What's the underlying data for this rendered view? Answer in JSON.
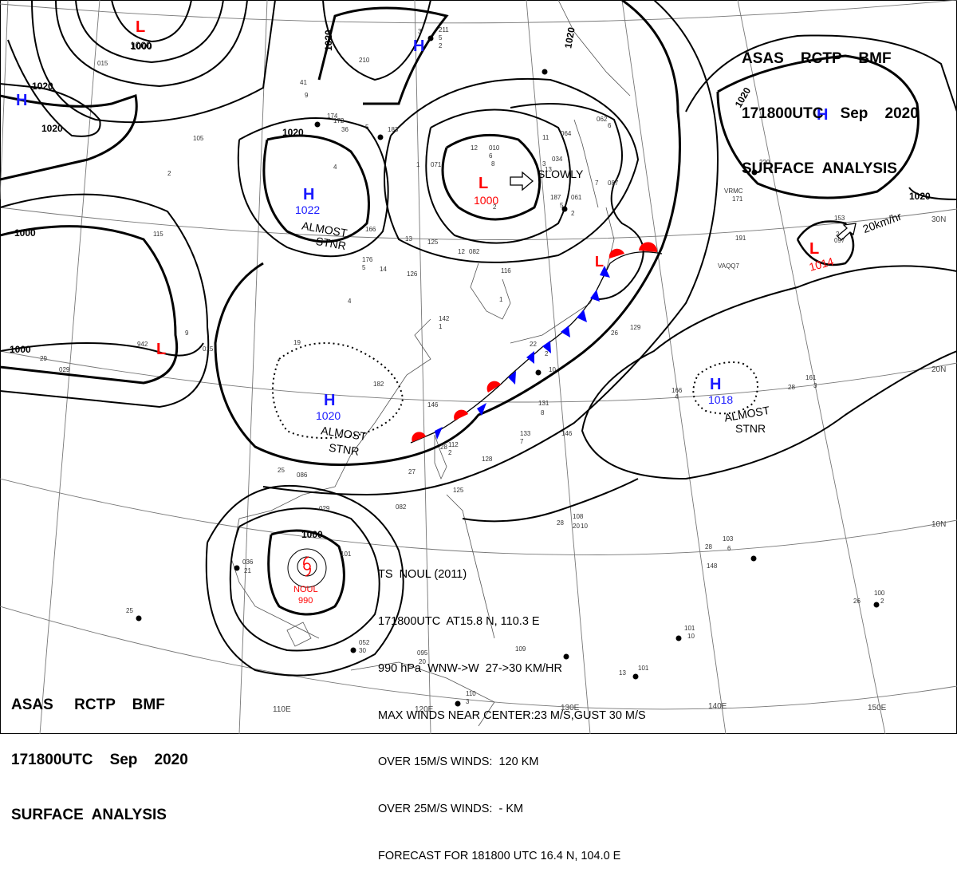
{
  "header_top_right": {
    "line1": "ASAS    RCTP    BMF",
    "line2": "171800UTC    Sep    2020",
    "line3": "SURFACE  ANALYSIS"
  },
  "header_bottom_left": {
    "line1": "ASAS     RCTP    BMF",
    "line2": "171800UTC    Sep    2020",
    "line3": "SURFACE  ANALYSIS"
  },
  "colors": {
    "high": "#1a1aff",
    "low": "#ff0000",
    "cold_front": "#0000ff",
    "warm_front": "#ff0000",
    "isobar": "#000000",
    "grid": "#777777"
  },
  "grid_labels": {
    "lon": [
      "110E",
      "120E",
      "130E",
      "140E",
      "150E"
    ],
    "lat": [
      "30N",
      "20N",
      "10N"
    ]
  },
  "pressure_centers": [
    {
      "type": "L",
      "value": "1000",
      "value_color": "black"
    },
    {
      "type": "L",
      "value": "1000",
      "value_color": "red",
      "motion": "SLOWLY"
    },
    {
      "type": "L",
      "value": "1014",
      "value_color": "red",
      "motion": "20km/hr"
    },
    {
      "type": "L",
      "value": "",
      "value_color": "red"
    },
    {
      "type": "L",
      "value": ""
    },
    {
      "type": "H",
      "value": ""
    },
    {
      "type": "H",
      "value": ""
    },
    {
      "type": "H",
      "value": ""
    },
    {
      "type": "H",
      "value": "1022",
      "note": [
        "ALMOST",
        "STNR"
      ]
    },
    {
      "type": "H",
      "value": "1020",
      "note": [
        "ALMOST",
        "STNR"
      ]
    },
    {
      "type": "H",
      "value": "1018",
      "note": [
        "ALMOST",
        "STNR"
      ]
    }
  ],
  "isobar_labels": [
    "1000",
    "1020",
    "1020",
    "1020",
    "1020",
    "1020",
    "1000",
    "1000",
    "1020",
    "1000"
  ],
  "typhoon": {
    "name": "NOUL",
    "center_pressure": "990",
    "info": [
      "TS  NOUL (2011)",
      "171800UTC  AT15.8 N, 110.3 E",
      "990 hPa  WNW->W  27->30 KM/HR",
      "MAX WINDS NEAR CENTER:23 M/S,GUST 30 M/S",
      "OVER 15M/S WINDS:  120 KM",
      "OVER 25M/S WINDS:  - KM",
      "FORECAST FOR 181800 UTC 16.4 N, 104.0 E"
    ]
  },
  "station_labels": [
    "211",
    "5",
    "2",
    "3",
    "210",
    "015",
    "172",
    "36",
    "41",
    "9",
    "174",
    "5",
    "183",
    "071",
    "1",
    "12",
    "010",
    "6",
    "8",
    "2",
    "064",
    "034",
    "3",
    "13",
    "062",
    "6",
    "11",
    "7",
    "061",
    "2",
    "187",
    "5",
    "087",
    "166",
    "13",
    "125",
    "082",
    "126",
    "14",
    "176",
    "5",
    "4",
    "4",
    "12",
    "116",
    "1",
    "142",
    "1",
    "22",
    "2",
    "10",
    "26",
    "129",
    "182",
    "19",
    "146",
    "112",
    "2",
    "28",
    "128",
    "27",
    "125",
    "131",
    "8",
    "133",
    "7",
    "146",
    "108",
    "28",
    "20",
    "10",
    "166",
    "4",
    "161",
    "3",
    "28",
    "171",
    "VRMC",
    "191",
    "VAQQ7",
    "220",
    "153",
    "2",
    "097",
    "942",
    "015",
    "29",
    "029",
    "115",
    "105",
    "9",
    "2",
    "086",
    "25",
    "082",
    "029",
    "036",
    "21",
    "101",
    "052",
    "30",
    "095",
    "20",
    "109",
    "110",
    "3",
    "28",
    "103",
    "6",
    "148",
    "101",
    "10",
    "26",
    "100",
    "2",
    "25",
    "101",
    "13"
  ]
}
